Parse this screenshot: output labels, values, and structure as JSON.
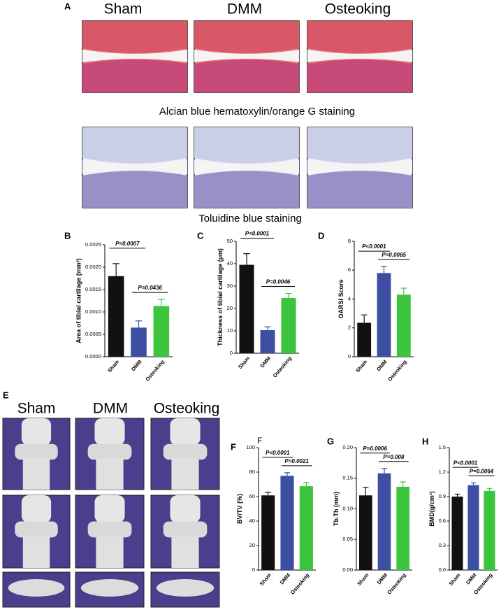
{
  "figure": {
    "panel_a": {
      "label": "A",
      "columns": [
        "Sham",
        "DMM",
        "Osteoking"
      ],
      "captions": [
        "Alcian blue hematoxylin/orange G staining",
        "Toluidine blue staining"
      ]
    },
    "panel_e": {
      "label": "E",
      "columns": [
        "Sham",
        "DMM",
        "Osteoking"
      ]
    },
    "stray_label": "F"
  },
  "chart_data": [
    {
      "type": "bar",
      "label": "B",
      "ylabel": "Area of tibial cartilage (mm²)",
      "categories": [
        "Sham",
        "DMM",
        "Osteoking"
      ],
      "values": [
        0.0018,
        0.00065,
        0.00113
      ],
      "errors": [
        0.00028,
        0.00015,
        0.00015
      ],
      "colors": [
        "#111111",
        "#3d4fa3",
        "#3cc43c"
      ],
      "ylim": [
        0,
        0.0025
      ],
      "yticks": [
        {
          "value": 0,
          "label": "0.0000"
        },
        {
          "value": 0.0005,
          "label": "0.0005"
        },
        {
          "value": 0.001,
          "label": "0.0010"
        },
        {
          "value": 0.0015,
          "label": "0.0015"
        },
        {
          "value": 0.002,
          "label": "0.0020"
        },
        {
          "value": 0.0025,
          "label": "0.0025"
        }
      ],
      "annotations": [
        {
          "text": "P=0.0007",
          "between": [
            "Sham",
            "DMM"
          ]
        },
        {
          "text": "P=0.0436",
          "between": [
            "DMM",
            "Osteoking"
          ]
        }
      ]
    },
    {
      "type": "bar",
      "label": "C",
      "ylabel": "Thickness of tibial cartilage (µm)",
      "categories": [
        "Sham",
        "DMM",
        "Osteoking"
      ],
      "values": [
        39.5,
        10.3,
        24.7
      ],
      "errors": [
        5,
        1.5,
        2
      ],
      "colors": [
        "#111111",
        "#3d4fa3",
        "#3cc43c"
      ],
      "ylim": [
        0,
        50
      ],
      "yticks": [
        0,
        10,
        20,
        30,
        40,
        50
      ],
      "annotations": [
        {
          "text": "P<0.0001",
          "between": [
            "Sham",
            "DMM"
          ]
        },
        {
          "text": "P=0.0046",
          "between": [
            "DMM",
            "Osteoking"
          ]
        }
      ]
    },
    {
      "type": "bar",
      "label": "D",
      "ylabel": "OARSI Score",
      "categories": [
        "Sham",
        "DMM",
        "Osteoking"
      ],
      "values": [
        2.35,
        5.8,
        4.3
      ],
      "errors": [
        0.55,
        0.45,
        0.45
      ],
      "colors": [
        "#111111",
        "#3d4fa3",
        "#3cc43c"
      ],
      "ylim": [
        0,
        8
      ],
      "yticks": [
        0,
        2,
        4,
        6,
        8
      ],
      "annotations": [
        {
          "text": "P<0.0001",
          "between": [
            "Sham",
            "DMM"
          ]
        },
        {
          "text": "P=0.0065",
          "between": [
            "DMM",
            "Osteoking"
          ]
        }
      ]
    },
    {
      "type": "bar",
      "label": "F",
      "ylabel": "BV/TV (%)",
      "categories": [
        "Sham",
        "DMM",
        "Osteoking"
      ],
      "values": [
        61,
        77,
        68.5
      ],
      "errors": [
        2.5,
        2.5,
        3
      ],
      "colors": [
        "#111111",
        "#3d4fa3",
        "#3cc43c"
      ],
      "ylim": [
        0,
        100
      ],
      "yticks": [
        0,
        20,
        40,
        60,
        80,
        100
      ],
      "annotations": [
        {
          "text": "P<0.0001",
          "between": [
            "Sham",
            "DMM"
          ]
        },
        {
          "text": "P=0.0021",
          "between": [
            "DMM",
            "Osteoking"
          ]
        }
      ]
    },
    {
      "type": "bar",
      "label": "G",
      "ylabel": "Tb.Th (mm)",
      "categories": [
        "Sham",
        "DMM",
        "Osteoking"
      ],
      "values": [
        0.122,
        0.158,
        0.136
      ],
      "errors": [
        0.013,
        0.008,
        0.008
      ],
      "colors": [
        "#111111",
        "#3d4fa3",
        "#3cc43c"
      ],
      "ylim": [
        0,
        0.2
      ],
      "yticks": [
        {
          "value": 0,
          "label": "0.00"
        },
        0.05,
        {
          "value": 0.1,
          "label": "0.10"
        },
        0.15,
        {
          "value": 0.2,
          "label": "0.20"
        }
      ],
      "annotations": [
        {
          "text": "P=0.0006",
          "between": [
            "Sham",
            "DMM"
          ]
        },
        {
          "text": "P=0.008",
          "between": [
            "DMM",
            "Osteoking"
          ]
        }
      ]
    },
    {
      "type": "bar",
      "label": "H",
      "ylabel": "BMD(g/cm³)",
      "categories": [
        "Sham",
        "DMM",
        "Osteoking"
      ],
      "values": [
        0.9,
        1.04,
        0.97
      ],
      "errors": [
        0.03,
        0.03,
        0.03
      ],
      "colors": [
        "#111111",
        "#3d4fa3",
        "#3cc43c"
      ],
      "ylim": [
        0,
        1.5
      ],
      "yticks": [
        {
          "value": 0,
          "label": "0.0"
        },
        0.3,
        0.6,
        0.9,
        1.2,
        1.5
      ],
      "annotations": [
        {
          "text": "P<0.0001",
          "between": [
            "Sham",
            "DMM"
          ]
        },
        {
          "text": "P=0.0064",
          "between": [
            "DMM",
            "Osteoking"
          ]
        }
      ]
    }
  ]
}
